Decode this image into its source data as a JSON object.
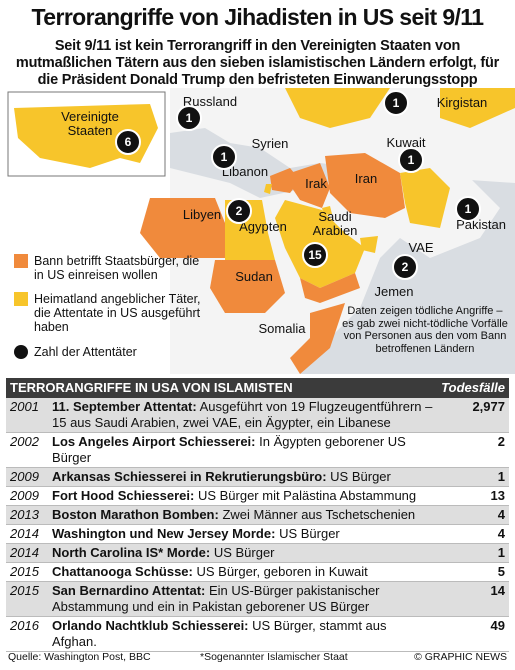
{
  "header": {
    "title": "Terrorangriffe von Jihadisten in US seit 9/11",
    "subtitle": "Seit 9/11 ist kein Terrorangriff in den Vereinigten Staaten von mutmaßlichen Tätern aus den sieben islamistischen Ländern erfolgt, für die Präsident Donald Trump den befristeten Einwanderungsstopp angeordnet hat"
  },
  "map": {
    "labels": [
      {
        "name": "Vereinigte Staaten",
        "count": 6
      },
      {
        "name": "Russland",
        "count": 1
      },
      {
        "name": "Kirgistan",
        "count": 1
      },
      {
        "name": "Syrien"
      },
      {
        "name": "Libanon",
        "count": 1
      },
      {
        "name": "Kuwait",
        "count": 1
      },
      {
        "name": "Irak"
      },
      {
        "name": "Iran"
      },
      {
        "name": "Libyen"
      },
      {
        "name": "Ägypten",
        "count": 2
      },
      {
        "name": "Saudi Arabien",
        "count": 15
      },
      {
        "name": "Pakistan",
        "count": 1
      },
      {
        "name": "VAE",
        "count": 2
      },
      {
        "name": "Jemen"
      },
      {
        "name": "Sudan"
      },
      {
        "name": "Somalia"
      }
    ],
    "legend": [
      "Bann betrifft Staatsbürger, die in US einreisen wollen",
      "Heimatland angeblicher Täter, die Attentate in US ausgeführt haben",
      "Zahl der Attentäter"
    ],
    "note": "Daten zeigen tödliche Angriffe – es gab zwei nicht-tödliche Vorfälle von Personen aus den vom Bann betroffenen Ländern"
  },
  "table": {
    "title": "TERRORANGRIFFE IN USA VON ISLAMISTEN",
    "value_header": "Todesfälle",
    "rows": [
      {
        "year": 2001,
        "event": "11. September Attentat:",
        "text": "Ausgeführt von 19 Flugzeugentführern – 15 aus Saudi Arabien, zwei VAE, ein Ägypter, ein Libanese",
        "deaths": "2,977"
      },
      {
        "year": 2002,
        "event": "Los Angeles Airport Schiesserei:",
        "text": "In Ägypten geborener US Bürger",
        "deaths": 2
      },
      {
        "year": 2009,
        "event": "Arkansas Schiesserei in Rekrutierungsbüro:",
        "text": "US Bürger",
        "deaths": 1
      },
      {
        "year": 2009,
        "event": "Fort Hood Schiesserei:",
        "text": "US Bürger mit Palästina Abstammung",
        "deaths": 13
      },
      {
        "year": 2013,
        "event": "Boston Marathon Bomben:",
        "text": "Zwei Männer aus Tschetschenien",
        "deaths": 4
      },
      {
        "year": 2014,
        "event": "Washington und New Jersey Morde:",
        "text": "US Bürger",
        "deaths": 4
      },
      {
        "year": 2014,
        "event": "North Carolina IS* Morde:",
        "text": "US Bürger",
        "deaths": 1
      },
      {
        "year": 2015,
        "event": "Chattanooga Schüsse:",
        "text": "US Bürger, geboren in Kuwait",
        "deaths": 5
      },
      {
        "year": 2015,
        "event": "San Bernardino Attentat:",
        "text": "Ein US-Bürger pakistanischer Abstammung und ein in Pakistan geborener US Bürger",
        "deaths": 14
      },
      {
        "year": 2016,
        "event": "Orlando Nachtklub Schiesserei:",
        "text": "US Bürger, stammt aus Afghan.",
        "deaths": 49
      }
    ]
  },
  "footer": {
    "source": "Quelle: Washington Post, BBC",
    "footnote": "*Sogenannter Islamischer Staat",
    "credit": "© GRAPHIC NEWS"
  }
}
